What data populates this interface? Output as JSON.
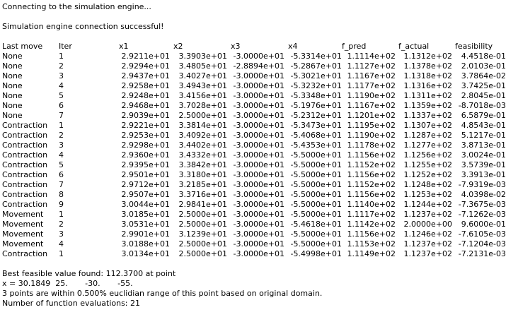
{
  "messages": {
    "connecting": "Connecting to the simulation engine...",
    "connected": "Simulation engine connection successful!"
  },
  "table": {
    "headers": [
      "Last move",
      "Iter",
      "x1",
      "x2",
      "x3",
      "x4",
      "f_pred",
      "f_actual",
      "feasibility"
    ],
    "rows": [
      [
        "None",
        "1",
        "2.9211e+01",
        "3.3903e+01",
        "-3.0000e+01",
        "-5.3314e+01",
        "1.1114e+02",
        "1.1312e+02",
        "4.4518e-01"
      ],
      [
        "None",
        "2",
        "2.9294e+01",
        "3.4805e+01",
        "-2.8894e+01",
        "-5.2867e+01",
        "1.1127e+02",
        "1.1378e+02",
        "2.0103e-01"
      ],
      [
        "None",
        "3",
        "2.9437e+01",
        "3.4027e+01",
        "-3.0000e+01",
        "-5.3021e+01",
        "1.1167e+02",
        "1.1318e+02",
        "3.7864e-02"
      ],
      [
        "None",
        "4",
        "2.9258e+01",
        "3.4943e+01",
        "-3.0000e+01",
        "-5.3232e+01",
        "1.1177e+02",
        "1.1316e+02",
        "3.7425e-01"
      ],
      [
        "None",
        "5",
        "2.9248e+01",
        "3.4156e+01",
        "-3.0000e+01",
        "-5.3348e+01",
        "1.1190e+02",
        "1.1311e+02",
        "2.8045e-01"
      ],
      [
        "None",
        "6",
        "2.9468e+01",
        "3.7028e+01",
        "-3.0000e+01",
        "-5.1976e+01",
        "1.1167e+02",
        "1.1359e+02",
        "-8.7018e-03"
      ],
      [
        "None",
        "7",
        "2.9039e+01",
        "2.5000e+01",
        "-3.0000e+01",
        "-5.2312e+01",
        "1.1201e+02",
        "1.1337e+02",
        "6.5879e-01"
      ],
      [
        "Contraction",
        "1",
        "2.9221e+01",
        "3.3814e+01",
        "-3.0000e+01",
        "-5.3473e+01",
        "1.1195e+02",
        "1.1307e+02",
        "4.8543e-01"
      ],
      [
        "Contraction",
        "2",
        "2.9253e+01",
        "3.4092e+01",
        "-3.0000e+01",
        "-5.4068e+01",
        "1.1190e+02",
        "1.1287e+02",
        "5.1217e-01"
      ],
      [
        "Contraction",
        "3",
        "2.9298e+01",
        "3.4402e+01",
        "-3.0000e+01",
        "-5.4353e+01",
        "1.1178e+02",
        "1.1277e+02",
        "3.8713e-01"
      ],
      [
        "Contraction",
        "4",
        "2.9360e+01",
        "3.4332e+01",
        "-3.0000e+01",
        "-5.5000e+01",
        "1.1156e+02",
        "1.1256e+02",
        "3.0024e-01"
      ],
      [
        "Contraction",
        "5",
        "2.9395e+01",
        "3.3842e+01",
        "-3.0000e+01",
        "-5.5000e+01",
        "1.1152e+02",
        "1.1255e+02",
        "3.5739e-01"
      ],
      [
        "Contraction",
        "6",
        "2.9501e+01",
        "3.3180e+01",
        "-3.0000e+01",
        "-5.5000e+01",
        "1.1156e+02",
        "1.1252e+02",
        "3.3913e-01"
      ],
      [
        "Contraction",
        "7",
        "2.9712e+01",
        "3.2185e+01",
        "-3.0000e+01",
        "-5.5000e+01",
        "1.1152e+02",
        "1.1248e+02",
        "-7.9319e-03"
      ],
      [
        "Contraction",
        "8",
        "2.9507e+01",
        "3.3716e+01",
        "-3.0000e+01",
        "-5.5000e+01",
        "1.1156e+02",
        "1.1253e+02",
        "4.0398e-02"
      ],
      [
        "Contraction",
        "9",
        "3.0044e+01",
        "2.9841e+01",
        "-3.0000e+01",
        "-5.5000e+01",
        "1.1140e+02",
        "1.1244e+02",
        "-7.3675e-03"
      ],
      [
        "Movement",
        "1",
        "3.0185e+01",
        "2.5000e+01",
        "-3.0000e+01",
        "-5.5000e+01",
        "1.1117e+02",
        "1.1237e+02",
        "-7.1262e-03"
      ],
      [
        "Movement",
        "2",
        "3.0531e+01",
        "2.5000e+01",
        "-3.0000e+01",
        "-5.4618e+01",
        "1.1142e+02",
        "2.0000e+00",
        "9.6000e-01"
      ],
      [
        "Movement",
        "3",
        "2.9901e+01",
        "3.1239e+01",
        "-3.0000e+01",
        "-5.5000e+01",
        "1.1156e+02",
        "1.1246e+02",
        "-7.6105e-03"
      ],
      [
        "Movement",
        "4",
        "3.0188e+01",
        "2.5000e+01",
        "-3.0000e+01",
        "-5.5000e+01",
        "1.1153e+02",
        "1.1237e+02",
        "-7.1204e-03"
      ],
      [
        "Contraction",
        "1",
        "3.0134e+01",
        "2.5000e+01",
        "-3.0000e+01",
        "-5.4998e+01",
        "1.1149e+02",
        "1.1237e+02",
        "-7.2131e-03"
      ]
    ]
  },
  "summary": {
    "best": "Best feasible value found: 112.3700 at point",
    "point": "x = 30.1849  25.       -30.       -55.",
    "within": "3 points are within 0.500% euclidian range of this point based on original domain.",
    "evaluations": "Number of function evaluations: 21"
  }
}
